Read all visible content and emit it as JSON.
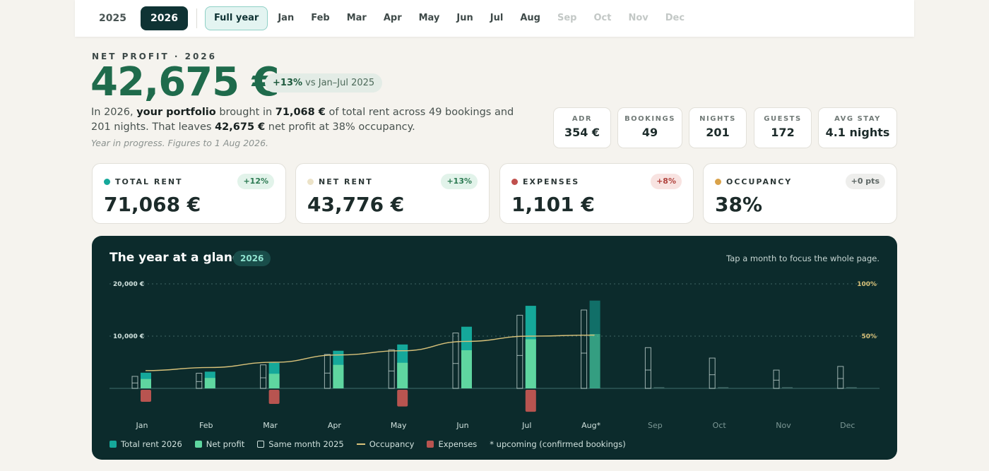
{
  "nav": {
    "years": [
      "2025",
      "2026"
    ],
    "active_year": "2026",
    "full_year_label": "Full year",
    "months": [
      "Jan",
      "Feb",
      "Mar",
      "Apr",
      "May",
      "Jun",
      "Jul",
      "Aug",
      "Sep",
      "Oct",
      "Nov",
      "Dec"
    ],
    "future_months": [
      "Sep",
      "Oct",
      "Nov",
      "Dec"
    ]
  },
  "hero": {
    "eyebrow": "NET PROFIT · 2026",
    "value": "42,675 €",
    "delta_strong": "+13%",
    "delta_rest": "vs Jan–Jul 2025",
    "summary": {
      "p1": "In 2026, ",
      "portfolio": "your portfolio",
      "p2": " brought in ",
      "rent": "71,068 €",
      "p3": " of total rent across 49 bookings and 201 nights. That leaves ",
      "profit": "42,675 €",
      "p4": " net profit at 38% occupancy."
    },
    "note": "Year in progress. Figures to 1 Aug 2026."
  },
  "stats": [
    {
      "label": "ADR",
      "value": "354 €"
    },
    {
      "label": "BOOKINGS",
      "value": "49"
    },
    {
      "label": "NIGHTS",
      "value": "201"
    },
    {
      "label": "GUESTS",
      "value": "172"
    },
    {
      "label": "AVG STAY",
      "value": "4.1 nights"
    }
  ],
  "kpis": [
    {
      "label": "TOTAL RENT",
      "value": "71,068 €",
      "badge": "+12%",
      "dot": "#15a89a",
      "badge_bg": "#e2f3ea",
      "badge_fg": "#2c7a52"
    },
    {
      "label": "NET RENT",
      "value": "43,776 €",
      "badge": "+13%",
      "dot": "#ece3c8",
      "badge_bg": "#e2f3ea",
      "badge_fg": "#2c7a52"
    },
    {
      "label": "EXPENSES",
      "value": "1,101 €",
      "badge": "+8%",
      "dot": "#c0504d",
      "badge_bg": "#f8e3e1",
      "badge_fg": "#b0423d"
    },
    {
      "label": "OCCUPANCY",
      "value": "38%",
      "badge": "+0 pts",
      "dot": "#d9a24a",
      "badge_bg": "#eeeeec",
      "badge_fg": "#5d6664"
    }
  ],
  "chart_panel": {
    "title": "The year at a glance",
    "year_badge": "2026",
    "hint": "Tap a month to focus the whole page.",
    "legend": {
      "total_rent": "Total rent 2026",
      "net_profit": "Net profit",
      "same_month": "Same month 2025",
      "occupancy": "Occupancy",
      "expenses": "Expenses",
      "upcoming": "* upcoming (confirmed bookings)"
    }
  },
  "colors": {
    "total_rent": "#15a89a",
    "net_profit": "#5fd6a0",
    "expenses": "#b85450",
    "occupancy": "#d9c27a",
    "outline": "#cfe0dc",
    "panel_bg": "#0c2b2c"
  },
  "chart_data": {
    "type": "bar",
    "categories": [
      "Jan",
      "Feb",
      "Mar",
      "Apr",
      "May",
      "Jun",
      "Jul",
      "Aug*",
      "Sep",
      "Oct",
      "Nov",
      "Dec"
    ],
    "series": [
      {
        "name": "Total rent 2026",
        "values": [
          3000,
          3200,
          4900,
          7200,
          8400,
          11800,
          15800,
          16800,
          null,
          null,
          null,
          null
        ]
      },
      {
        "name": "Net profit",
        "values": [
          1800,
          2000,
          2800,
          4500,
          4900,
          7300,
          9400,
          10400,
          null,
          null,
          null,
          null
        ]
      },
      {
        "name": "Same month 2025",
        "values": [
          2300,
          2900,
          4500,
          6500,
          7400,
          10600,
          14000,
          15000,
          7800,
          5800,
          3500,
          4200
        ]
      },
      {
        "name": "Expenses",
        "values": [
          2300,
          0,
          2700,
          0,
          3200,
          0,
          4200,
          0,
          0,
          0,
          0,
          0
        ]
      },
      {
        "name": "Occupancy",
        "values": [
          17,
          20,
          25,
          32,
          36,
          45,
          50,
          51,
          null,
          null,
          null,
          null
        ]
      }
    ],
    "ylim": [
      -5000,
      20000
    ],
    "y_ticks": [
      {
        "value": 20000,
        "label": "20,000 €"
      },
      {
        "value": 10000,
        "label": "10,000 €"
      }
    ],
    "y2_ticks": [
      {
        "value": 100,
        "label": "100%"
      },
      {
        "value": 50,
        "label": "50%"
      }
    ],
    "y2lim": [
      0,
      100
    ],
    "upcoming_month": "Aug*",
    "grid": true,
    "legend_position": "bottom-left"
  }
}
